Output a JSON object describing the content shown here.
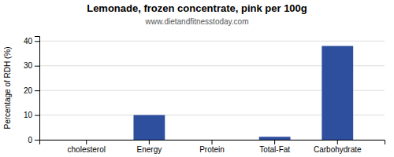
{
  "chart_data": {
    "type": "bar",
    "title": "Lemonade, frozen concentrate, pink per 100g",
    "subtitle": "www.dietandfitnesstoday.com",
    "categories": [
      "cholesterol",
      "Energy",
      "Protein",
      "Total-Fat",
      "Carbohydrate"
    ],
    "values": [
      0,
      10,
      0,
      1.2,
      38
    ],
    "color": "#2e4e9e",
    "ylabel": "Percentage of RDH (%)",
    "ylim": [
      0,
      42
    ],
    "yticks": [
      0,
      10,
      20,
      30,
      40
    ],
    "grid": true
  }
}
